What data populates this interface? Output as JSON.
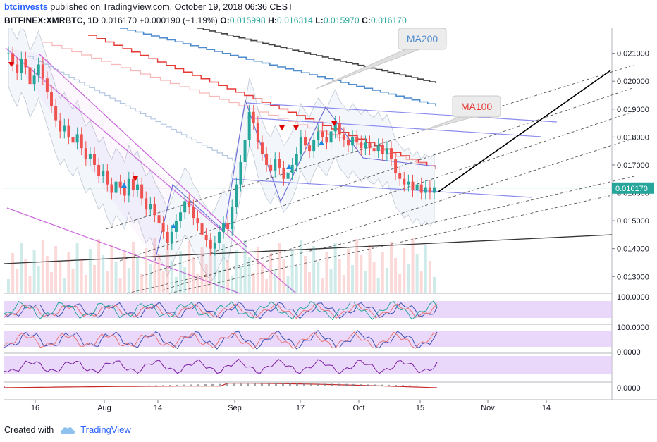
{
  "header": {
    "author": "btcinvests",
    "published_text": " published on TradingView.com, October 19, 2018 06:36 CEST",
    "symbol": "BITFINEX:XMRBTC, 1D",
    "last": "0.016170",
    "change": "+0.000190 (+1.19%)",
    "o_label": "O:",
    "o_value": "0.015998",
    "h_label": "H:",
    "h_value": "0.016314",
    "l_label": "L:",
    "l_value": "0.015970",
    "c_label": "C:",
    "c_value": "0.016170"
  },
  "footer": {
    "created_with": "Created with",
    "brand": "TradingView",
    "logo_icon": "tradingview-cloud-icon"
  },
  "colors": {
    "up": "#26a69a",
    "down": "#ef5350",
    "ma200": "#4e8ccf",
    "ma100": "#e53935",
    "channel": "#8c8cf0",
    "wedge": "#cc66dd",
    "panel_fill": "#e1c8f8",
    "price_tag": "#26a69a"
  },
  "chart_data": {
    "type": "candlestick",
    "symbol": "BITFINEX:XMRBTC",
    "interval": "1D",
    "x_tick_labels": [
      "16",
      "Aug",
      "14",
      "Sep",
      "17",
      "Oct",
      "15",
      "Nov",
      "14"
    ],
    "y_tick_labels": [
      "0.021000",
      "0.020000",
      "0.019000",
      "0.018000",
      "0.017000",
      "0.016000",
      "0.015000",
      "0.014000",
      "0.013000"
    ],
    "ylim": [
      0.0124,
      0.0219
    ],
    "last_price_label": "0.016170",
    "annotations": [
      "MA200",
      "MA100"
    ],
    "close_series": [
      0.021,
      0.0206,
      0.0203,
      0.0208,
      0.0205,
      0.0199,
      0.0202,
      0.0206,
      0.0201,
      0.0196,
      0.0191,
      0.0186,
      0.0182,
      0.0184,
      0.018,
      0.0178,
      0.0181,
      0.0176,
      0.0172,
      0.0174,
      0.017,
      0.0166,
      0.0168,
      0.0163,
      0.016,
      0.0164,
      0.0162,
      0.0159,
      0.0165,
      0.0161,
      0.0163,
      0.0158,
      0.0154,
      0.0156,
      0.0152,
      0.0149,
      0.0146,
      0.0142,
      0.0146,
      0.015,
      0.0153,
      0.0157,
      0.0155,
      0.0151,
      0.0149,
      0.0145,
      0.0143,
      0.014,
      0.0142,
      0.0146,
      0.0149,
      0.0147,
      0.0155,
      0.0163,
      0.0171,
      0.0179,
      0.0189,
      0.0185,
      0.0178,
      0.0174,
      0.017,
      0.0168,
      0.0172,
      0.0169,
      0.0165,
      0.0167,
      0.017,
      0.0174,
      0.018,
      0.0177,
      0.0175,
      0.0179,
      0.0182,
      0.018,
      0.0178,
      0.0182,
      0.0185,
      0.0181,
      0.0179,
      0.0177,
      0.018,
      0.0178,
      0.0176,
      0.0178,
      0.0176,
      0.0175,
      0.0177,
      0.0174,
      0.0176,
      0.0172,
      0.0167,
      0.0165,
      0.0163,
      0.0164,
      0.0161,
      0.0163,
      0.016,
      0.0162,
      0.016,
      0.0162
    ]
  },
  "indicators": {
    "rsi_level": "100.0000",
    "stoch_levels": [
      "100.0000",
      "0.0000"
    ],
    "macd_level": "0.0000"
  }
}
